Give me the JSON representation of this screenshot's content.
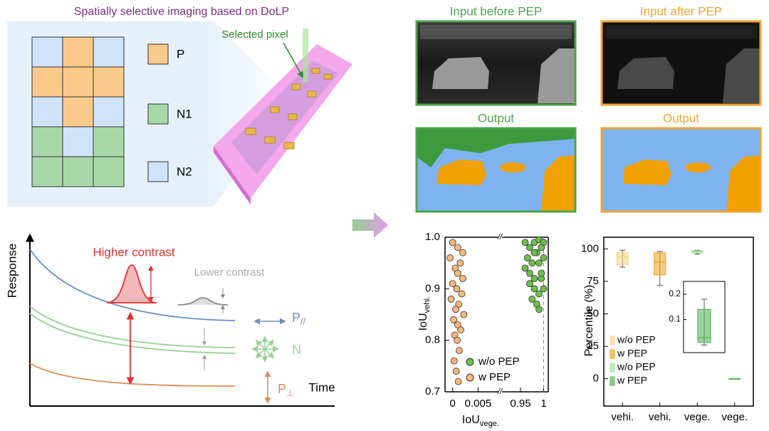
{
  "panel_a": {
    "title": "Spatially selective imaging based on DoLP",
    "callout": "Selected pixel",
    "grid": [
      [
        2,
        0,
        2
      ],
      [
        0,
        0,
        0
      ],
      [
        2,
        0,
        2
      ],
      [
        1,
        2,
        1
      ],
      [
        1,
        1,
        1
      ]
    ],
    "legend": [
      {
        "label": "P",
        "color": "#f9c98a"
      },
      {
        "label": "N1",
        "color": "#a8d8a8"
      },
      {
        "label": "N2",
        "color": "#cfe3fa"
      }
    ]
  },
  "panel_b": {
    "y_label": "Response",
    "x_label": "Time",
    "higher": "Higher contrast",
    "lower": "Lower contrast",
    "labels": [
      {
        "text": "P",
        "sub": "//",
        "color": "#6b8cc7"
      },
      {
        "text": "N",
        "color": "#98d098"
      },
      {
        "text": "P",
        "sub": "⊥",
        "color": "#e08a55"
      }
    ]
  },
  "panel_c": {
    "images": [
      {
        "title": "Input before PEP",
        "color": "#4ea24e"
      },
      {
        "title": "Input after PEP",
        "color": "#f2a230"
      },
      {
        "title": "Output",
        "color": "#4ea24e"
      },
      {
        "title": "Output",
        "color": "#f2a230"
      }
    ]
  },
  "chart_data": [
    {
      "type": "scatter",
      "x_label": {
        "text": "IoU",
        "sub": "vege."
      },
      "y_label": {
        "text": "IoU",
        "sub": "vehi."
      },
      "ylim": [
        0.7,
        1.0
      ],
      "yticks": [
        0.7,
        0.8,
        0.9,
        {
          "value": 1.0,
          "label": "1.0"
        }
      ],
      "x_segments": [
        {
          "xlim": [
            -0.0015,
            0.009
          ],
          "xticks": [
            0,
            0.005
          ]
        },
        {
          "xlim": [
            0.91,
            1.01
          ],
          "xticks": [
            0.95,
            1
          ]
        }
      ],
      "series": [
        {
          "name": "w/o PEP",
          "color": "#6cbf4a",
          "x": [
            0.96,
            0.97,
            0.98,
            0.99,
            1.0,
            0.965,
            0.975,
            0.985,
            0.995,
            0.96,
            0.97,
            0.98,
            0.99,
            1.0,
            0.97,
            0.98,
            0.99,
            0.975,
            0.985,
            0.995,
            0.99,
            1.0,
            0.98,
            0.995
          ],
          "y": [
            0.99,
            0.98,
            0.99,
            0.995,
            0.99,
            0.96,
            0.95,
            0.97,
            0.98,
            0.94,
            0.93,
            0.92,
            0.95,
            0.96,
            0.91,
            0.9,
            0.89,
            0.88,
            0.87,
            0.92,
            0.86,
            0.9,
            0.97,
            0.93
          ]
        },
        {
          "name": "w PEP",
          "color": "#f7b77a",
          "x": [
            0,
            0.001,
            0.002,
            -0.0005,
            0.0015,
            0.0005,
            0.001,
            0.002,
            0,
            0.0008,
            0.0018,
            -0.0003,
            0.0012,
            0.0006,
            0.0022,
            0.0002,
            0.001,
            0.0016,
            0.0004,
            0.0009,
            0.0013,
            0.0003,
            0.0007,
            0.0011
          ],
          "y": [
            0.99,
            0.98,
            0.97,
            0.96,
            0.95,
            0.94,
            0.93,
            0.92,
            0.91,
            0.9,
            0.89,
            0.88,
            0.87,
            0.86,
            0.85,
            0.84,
            0.83,
            0.82,
            0.81,
            0.8,
            0.78,
            0.76,
            0.74,
            0.72
          ]
        }
      ],
      "legend": "lower right"
    },
    {
      "type": "box",
      "y_label": "Percentile (%)",
      "categories": [
        "vehi.",
        "vehi.",
        "vege.",
        "vege."
      ],
      "ylim": [
        -21,
        109
      ],
      "yticks": [
        0,
        25,
        50,
        75,
        100
      ],
      "series": [
        {
          "name": "w/o PEP",
          "color": "#f9d58a",
          "values": [
            86,
            88,
            94,
            97,
            99
          ]
        },
        {
          "name": "w PEP",
          "color": "#f0a830",
          "values": [
            72,
            80,
            90,
            97,
            98
          ]
        },
        {
          "name": "w/o PEP",
          "color": "#a8e0a8",
          "values": [
            96,
            97,
            98,
            98.5,
            99
          ]
        },
        {
          "name": "w PEP",
          "color": "#5cb85c",
          "values": [
            0,
            0.01,
            0.03,
            0.14,
            0.18
          ]
        }
      ],
      "inset": {
        "ylim": [
          -0.03,
          0.25
        ],
        "yticks": [
          0.1,
          0.2
        ]
      },
      "legend": "lower left"
    }
  ]
}
